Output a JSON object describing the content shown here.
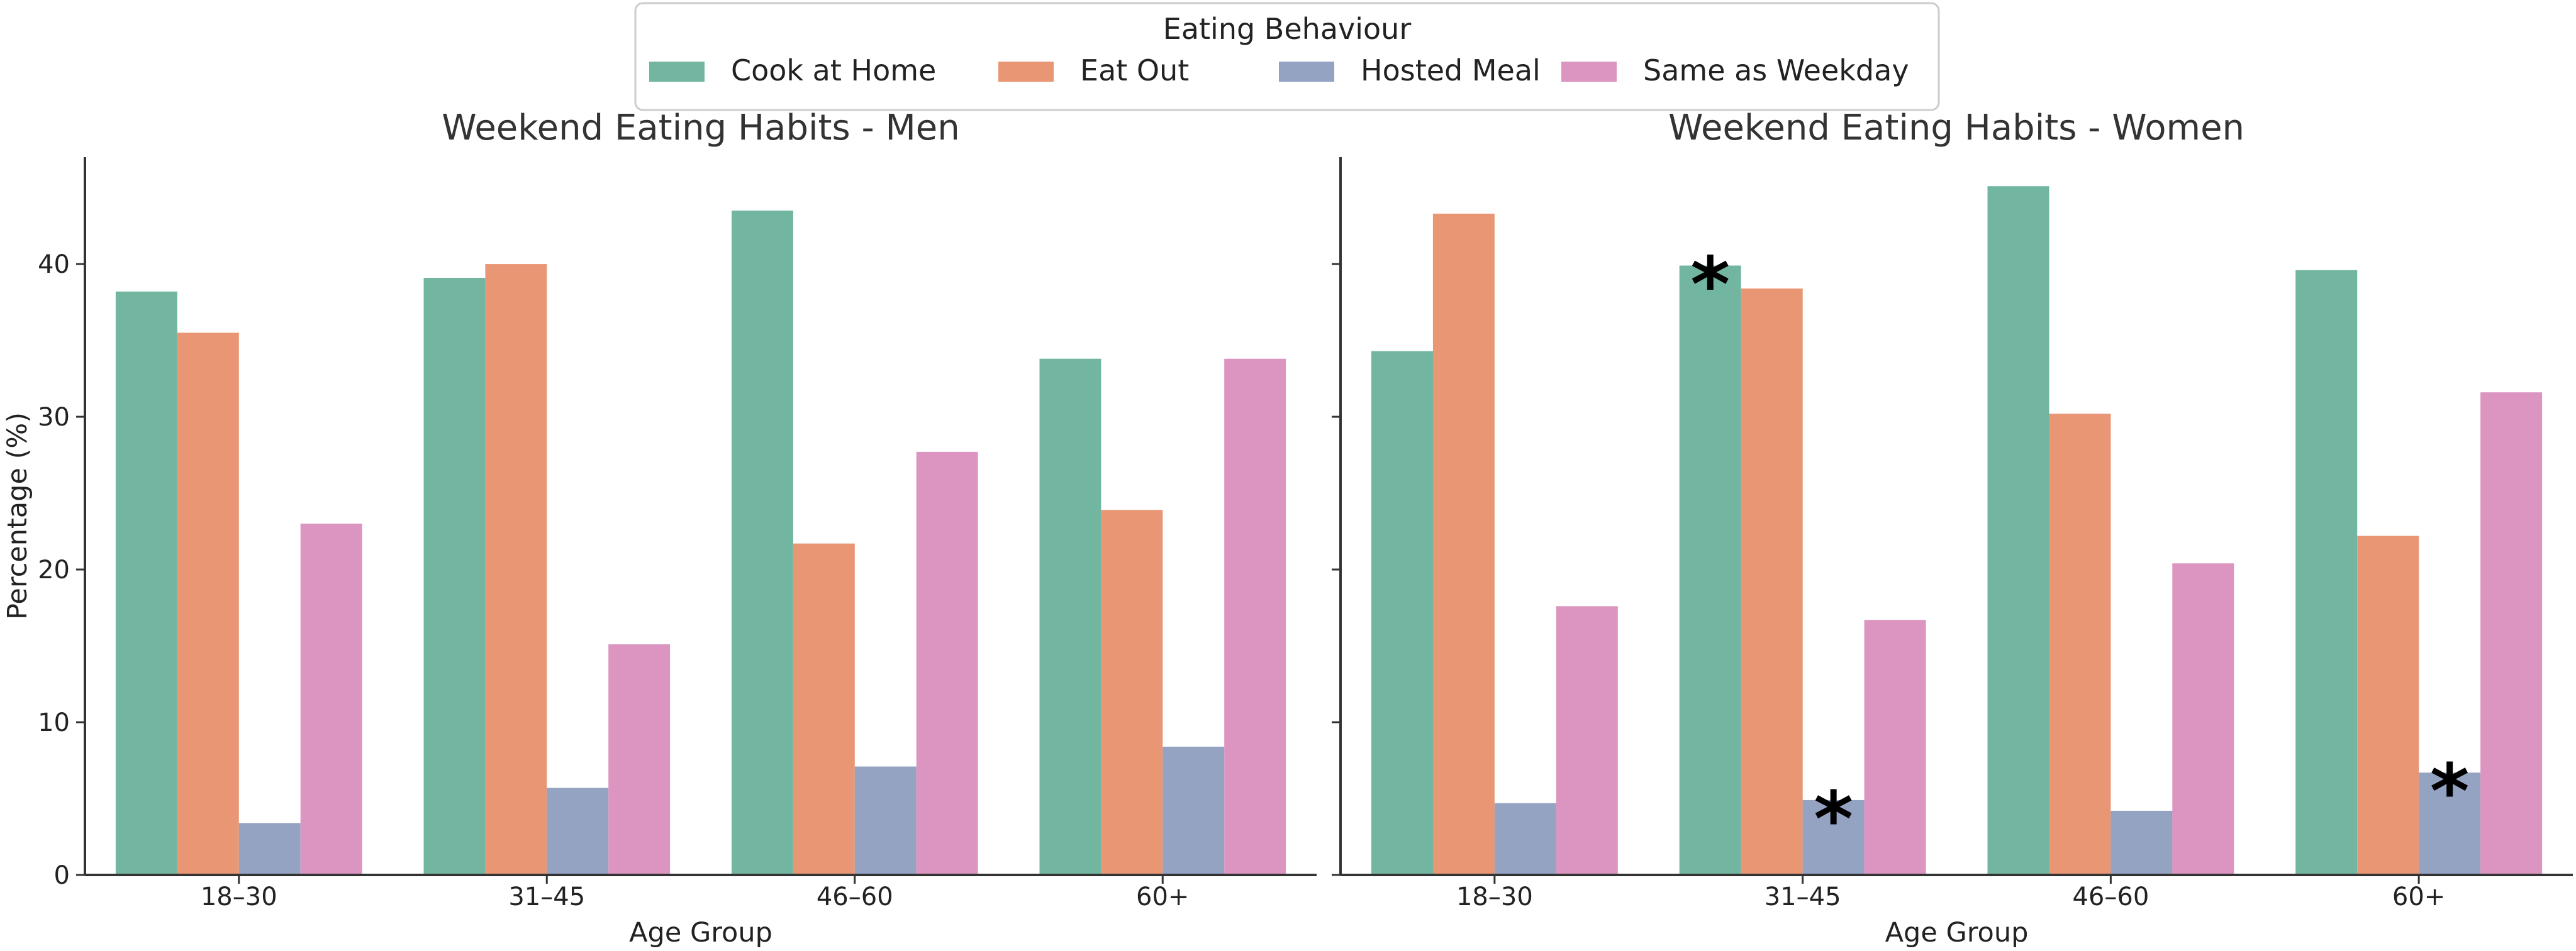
{
  "colors": {
    "cook_at_home": "#72b6a1",
    "eat_out": "#e99675",
    "hosted_meal": "#95a3c3",
    "same_as_weekday": "#db95c0"
  },
  "legend": {
    "title": "Eating Behaviour",
    "entries": [
      "Cook at Home",
      "Eat Out",
      "Hosted Meal",
      "Same as Weekday"
    ]
  },
  "chart_data": [
    {
      "type": "bar",
      "title": "Weekend Eating Habits - Men",
      "xlabel": "Age Group",
      "ylabel": "Percentage (%)",
      "categories": [
        "18–30",
        "31–45",
        "46–60",
        "60+"
      ],
      "ylim": [
        0,
        47
      ],
      "yticks": [
        0,
        10,
        20,
        30,
        40
      ],
      "series": [
        {
          "name": "Cook at Home",
          "values": [
            38.2,
            39.1,
            43.5,
            33.8
          ]
        },
        {
          "name": "Eat Out",
          "values": [
            35.5,
            40.0,
            21.7,
            23.9
          ]
        },
        {
          "name": "Hosted Meal",
          "values": [
            3.4,
            5.7,
            7.1,
            8.4
          ]
        },
        {
          "name": "Same as Weekday",
          "values": [
            23.0,
            15.1,
            27.7,
            33.8
          ]
        }
      ],
      "annotations": []
    },
    {
      "type": "bar",
      "title": "Weekend Eating Habits - Women",
      "xlabel": "Age Group",
      "ylabel": "",
      "categories": [
        "18–30",
        "31–45",
        "46–60",
        "60+"
      ],
      "ylim": [
        0,
        47
      ],
      "yticks": [
        0,
        10,
        20,
        30,
        40
      ],
      "series": [
        {
          "name": "Cook at Home",
          "values": [
            34.3,
            39.9,
            45.1,
            39.6
          ]
        },
        {
          "name": "Eat Out",
          "values": [
            43.3,
            38.4,
            30.2,
            22.2
          ]
        },
        {
          "name": "Hosted Meal",
          "values": [
            4.7,
            4.9,
            4.2,
            6.7
          ]
        },
        {
          "name": "Same as Weekday",
          "values": [
            17.6,
            16.7,
            20.4,
            31.6
          ]
        }
      ],
      "annotations": [
        {
          "category": "31–45",
          "series": "Cook at Home",
          "text": "*"
        },
        {
          "category": "31–45",
          "series": "Hosted Meal",
          "text": "*"
        },
        {
          "category": "60+",
          "series": "Hosted Meal",
          "text": "*"
        }
      ]
    }
  ]
}
